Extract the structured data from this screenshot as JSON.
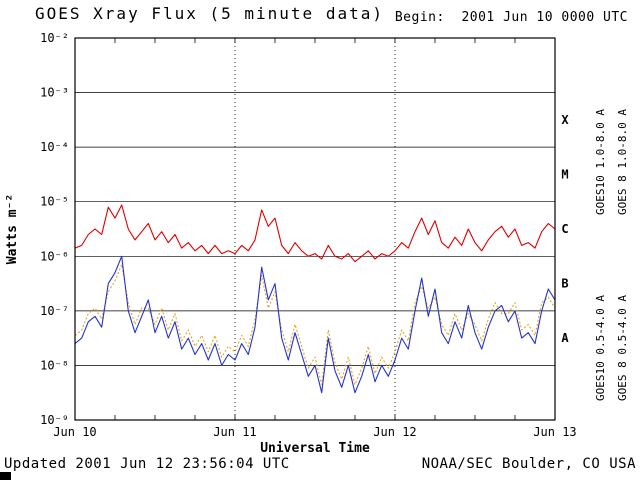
{
  "header": {
    "title": "GOES Xray Flux (5 minute data)",
    "begin": "Begin:  2001 Jun 10 0000 UTC"
  },
  "footer": {
    "updated": "Updated 2001 Jun 12 23:56:04 UTC",
    "credit": "NOAA/SEC Boulder, CO USA"
  },
  "chart_data": {
    "type": "line",
    "title": "GOES Xray Flux (5 minute data)",
    "xlabel": "Universal Time",
    "ylabel": "Watts m⁻²",
    "x_hours_range": [
      0,
      72
    ],
    "x_tick_hours": [
      0,
      24,
      48,
      72
    ],
    "x_tick_labels": [
      "Jun 10",
      "Jun 11",
      "Jun 12",
      "Jun 13"
    ],
    "y_tick_exponents": [
      -2,
      -3,
      -4,
      -5,
      -6,
      -7,
      -8,
      -9
    ],
    "y_tick_labels": [
      "10⁻²",
      "10⁻³",
      "10⁻⁴",
      "10⁻⁵",
      "10⁻⁶",
      "10⁻⁷",
      "10⁻⁸",
      "10⁻⁹"
    ],
    "ylim_exp": [
      -9,
      -2
    ],
    "grid": {
      "horizontal_exponents": [
        -3,
        -4,
        -5,
        -6,
        -7,
        -8
      ],
      "vertical_hours": [
        24,
        48
      ]
    },
    "flare_classes": [
      {
        "label": "X",
        "center_exp": -3.5
      },
      {
        "label": "M",
        "center_exp": -4.5
      },
      {
        "label": "C",
        "center_exp": -5.5
      },
      {
        "label": "B",
        "center_exp": -6.5
      },
      {
        "label": "A",
        "center_exp": -7.5
      }
    ],
    "right_labels": [
      {
        "text": "GOES10 1.0-8.0 A",
        "color": "#8833bb"
      },
      {
        "text": "GOES 8 1.0-8.0 A",
        "color": "#dd0000"
      },
      {
        "text": "GOES10 0.5-4.0 A",
        "color": "#dda520"
      },
      {
        "text": "GOES 8 0.5-4.0 A",
        "color": "#2233cc"
      }
    ],
    "series": [
      {
        "name": "GOES10 0.5-4.0 A",
        "color": "#dda520",
        "style": "dotted",
        "sample_interval_hours": 1,
        "log10_watts": [
          -7.45,
          -7.35,
          -7.05,
          -6.95,
          -7.15,
          -6.65,
          -6.45,
          -6.15,
          -6.85,
          -7.25,
          -6.95,
          -6.95,
          -7.25,
          -6.95,
          -7.35,
          -7.05,
          -7.55,
          -7.35,
          -7.65,
          -7.45,
          -7.75,
          -7.45,
          -7.85,
          -7.65,
          -7.75,
          -7.45,
          -7.65,
          -7.15,
          -6.35,
          -6.95,
          -6.65,
          -7.35,
          -7.75,
          -7.25,
          -7.65,
          -8.05,
          -7.85,
          -8.35,
          -7.35,
          -7.95,
          -8.25,
          -7.85,
          -8.35,
          -8.05,
          -7.65,
          -8.15,
          -7.85,
          -8.05,
          -7.75,
          -7.35,
          -7.55,
          -6.85,
          -6.55,
          -6.95,
          -6.75,
          -7.25,
          -7.45,
          -7.05,
          -7.35,
          -7.05,
          -7.25,
          -7.55,
          -7.15,
          -6.85,
          -7.05,
          -7.05,
          -6.85,
          -7.35,
          -7.25,
          -7.45,
          -6.85,
          -6.75,
          -6.95
        ]
      },
      {
        "name": "GOES 8 0.5-4.0 A",
        "color": "#2233cc",
        "style": "solid",
        "sample_interval_hours": 1,
        "log10_watts": [
          -7.6,
          -7.5,
          -7.2,
          -7.1,
          -7.3,
          -6.5,
          -6.3,
          -6.0,
          -7.0,
          -7.4,
          -7.1,
          -6.8,
          -7.4,
          -7.1,
          -7.5,
          -7.2,
          -7.7,
          -7.5,
          -7.8,
          -7.6,
          -7.9,
          -7.6,
          -8.0,
          -7.8,
          -7.9,
          -7.6,
          -7.8,
          -7.3,
          -6.2,
          -6.8,
          -6.5,
          -7.5,
          -7.9,
          -7.4,
          -7.8,
          -8.2,
          -8.0,
          -8.5,
          -7.5,
          -8.1,
          -8.4,
          -8.0,
          -8.5,
          -8.2,
          -7.8,
          -8.3,
          -8.0,
          -8.2,
          -7.9,
          -7.5,
          -7.7,
          -7.0,
          -6.4,
          -7.1,
          -6.6,
          -7.4,
          -7.6,
          -7.2,
          -7.5,
          -6.9,
          -7.4,
          -7.7,
          -7.3,
          -7.0,
          -6.9,
          -7.2,
          -7.0,
          -7.5,
          -7.4,
          -7.6,
          -7.0,
          -6.6,
          -6.8
        ]
      },
      {
        "name": "GOES 8 1.0-8.0 A",
        "color": "#dd0000",
        "style": "solid",
        "sample_interval_hours": 1,
        "log10_watts": [
          -5.85,
          -5.8,
          -5.6,
          -5.5,
          -5.6,
          -5.1,
          -5.3,
          -5.06,
          -5.5,
          -5.7,
          -5.55,
          -5.4,
          -5.7,
          -5.55,
          -5.75,
          -5.6,
          -5.85,
          -5.75,
          -5.9,
          -5.8,
          -5.95,
          -5.8,
          -5.95,
          -5.9,
          -5.95,
          -5.8,
          -5.9,
          -5.7,
          -5.15,
          -5.45,
          -5.3,
          -5.8,
          -5.95,
          -5.75,
          -5.9,
          -6.0,
          -5.95,
          -6.05,
          -5.8,
          -6.0,
          -6.05,
          -5.95,
          -6.1,
          -6.0,
          -5.9,
          -6.05,
          -5.95,
          -6.0,
          -5.9,
          -5.75,
          -5.85,
          -5.55,
          -5.3,
          -5.6,
          -5.35,
          -5.75,
          -5.85,
          -5.65,
          -5.8,
          -5.5,
          -5.75,
          -5.9,
          -5.7,
          -5.55,
          -5.45,
          -5.65,
          -5.5,
          -5.8,
          -5.75,
          -5.85,
          -5.55,
          -5.4,
          -5.5
        ]
      }
    ]
  }
}
